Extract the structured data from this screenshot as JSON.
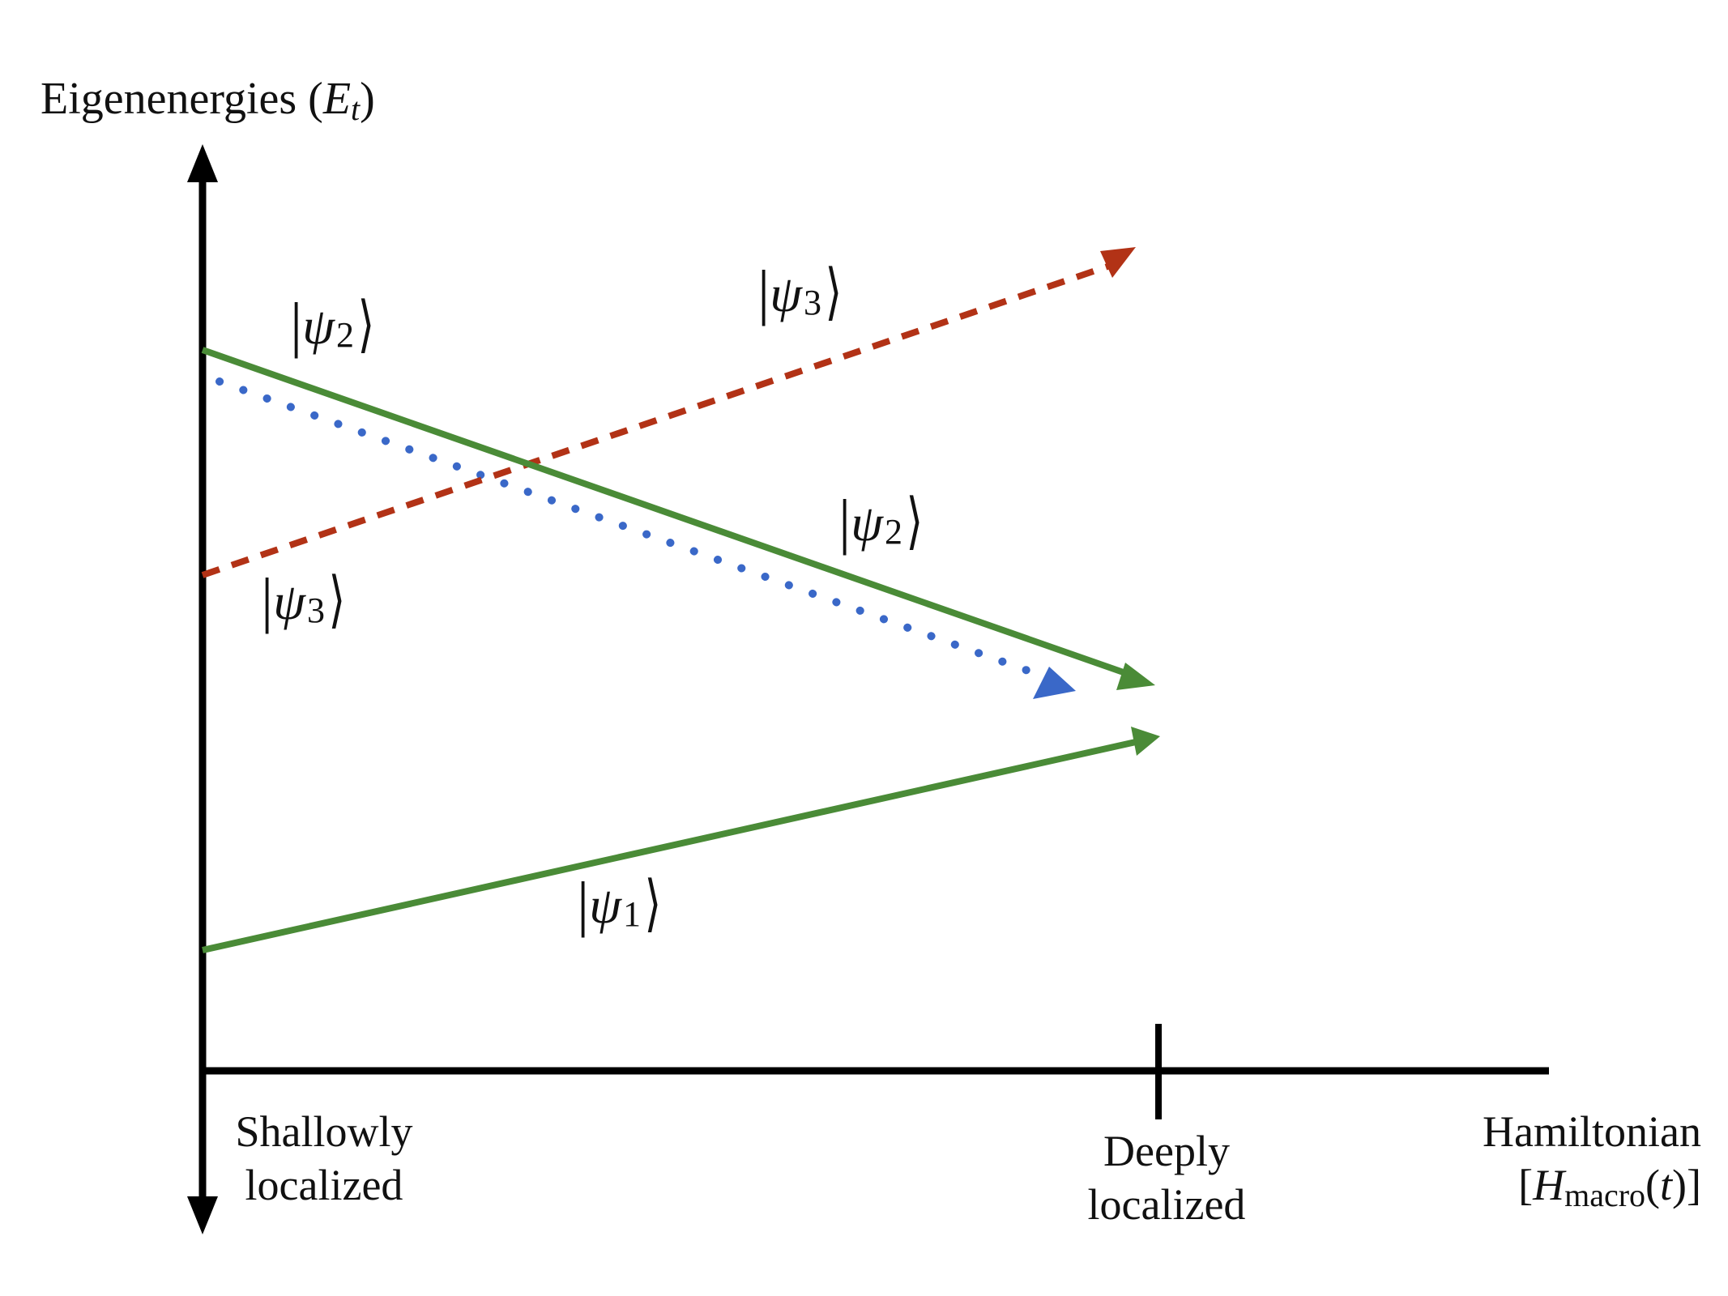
{
  "colors": {
    "axis": "#000000",
    "green": "#4a8b37",
    "red": "#b23216",
    "blue": "#3a68c8"
  },
  "y_axis": {
    "title_prefix": "Eigenenergies (",
    "title_symbol": "E",
    "title_subscript": "t",
    "title_suffix": ")"
  },
  "x_axis": {
    "start_line1": "Shallowly",
    "start_line2": "localized",
    "end_line1": "Deeply",
    "end_line2": "localized",
    "title_line1": "Hamiltonian",
    "title_line2_prefix": "[",
    "title_line2_symbol": "H",
    "title_line2_subscript": "macro",
    "title_line2_paren_open": "(",
    "title_line2_arg": "t",
    "title_line2_suffix": ")]"
  },
  "states": {
    "psi2_left": {
      "symbol": "ψ",
      "index": "2"
    },
    "psi3_top": {
      "symbol": "ψ",
      "index": "3"
    },
    "psi2_right": {
      "symbol": "ψ",
      "index": "2"
    },
    "psi3_left": {
      "symbol": "ψ",
      "index": "3"
    },
    "psi1": {
      "symbol": "ψ",
      "index": "1"
    }
  },
  "curves": [
    {
      "name": "psi2-solid-line",
      "state": "psi_2",
      "style": "solid",
      "color": "green",
      "direction": "decreasing"
    },
    {
      "name": "psi2-dotted-line",
      "state": "psi_2",
      "style": "dotted",
      "color": "blue",
      "direction": "decreasing"
    },
    {
      "name": "psi3-dashed-line",
      "state": "psi_3",
      "style": "dashed",
      "color": "red",
      "direction": "increasing"
    },
    {
      "name": "psi1-solid-line",
      "state": "psi_1",
      "style": "solid",
      "color": "green",
      "direction": "increasing"
    }
  ]
}
